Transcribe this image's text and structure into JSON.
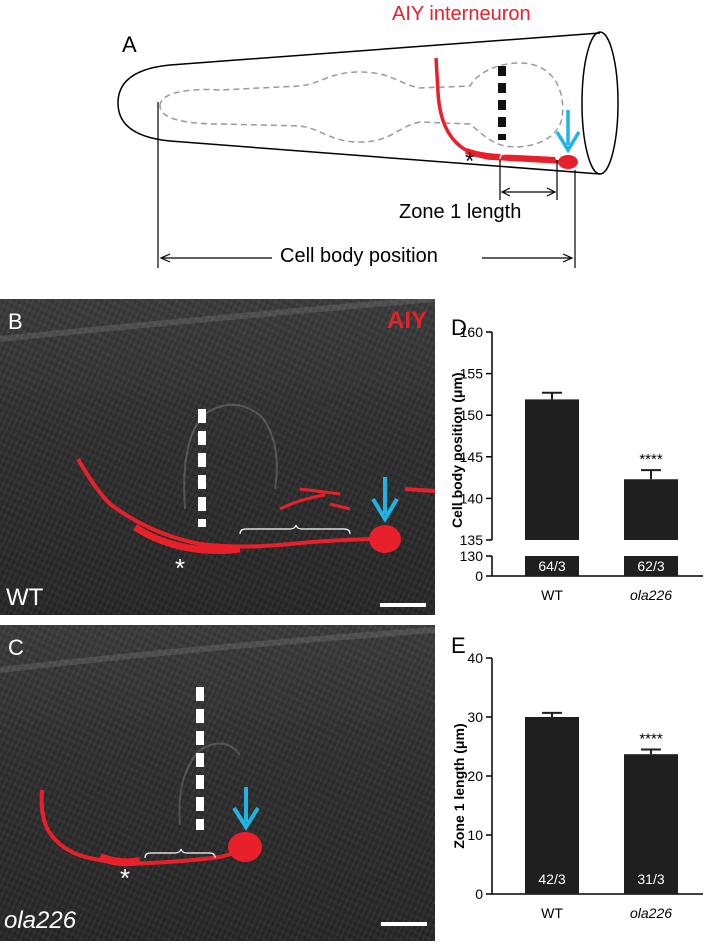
{
  "panelA": {
    "letter": "A",
    "title": "AIY interneuron",
    "zone_label": "Zone 1 length",
    "cell_body_label": "Cell body position",
    "asterisk": "*"
  },
  "panelB": {
    "letter": "B",
    "marker": "AIY",
    "genotype": "WT",
    "asterisk": "*"
  },
  "panelC": {
    "letter": "C",
    "genotype": "ola226",
    "asterisk": "*"
  },
  "colors": {
    "neuron_red": "#e8202a",
    "arrow_blue": "#1fb4e6",
    "bar": "#1f1f1f"
  },
  "chart_data": [
    {
      "panel": "D",
      "type": "bar",
      "categories": [
        "WT",
        "ola226"
      ],
      "values": [
        151.9,
        142.3
      ],
      "errors": [
        0.8,
        1.1
      ],
      "bar_labels": [
        "64/3",
        "62/3"
      ],
      "significance": [
        "",
        "****"
      ],
      "ylabel": "Cell body position (μm)",
      "ylim": [
        0,
        160
      ],
      "axis_break": [
        0,
        130
      ],
      "yticks_low": [
        0,
        130
      ],
      "yticks_high": [
        135,
        140,
        145,
        150,
        155,
        160
      ]
    },
    {
      "panel": "E",
      "type": "bar",
      "categories": [
        "WT",
        "ola226"
      ],
      "values": [
        30.0,
        23.7
      ],
      "errors": [
        0.7,
        0.8
      ],
      "bar_labels": [
        "42/3",
        "31/3"
      ],
      "significance": [
        "",
        "****"
      ],
      "ylabel": "Zone 1 length (μm)",
      "ylim": [
        0,
        40
      ],
      "yticks": [
        0,
        10,
        20,
        30,
        40
      ]
    }
  ]
}
